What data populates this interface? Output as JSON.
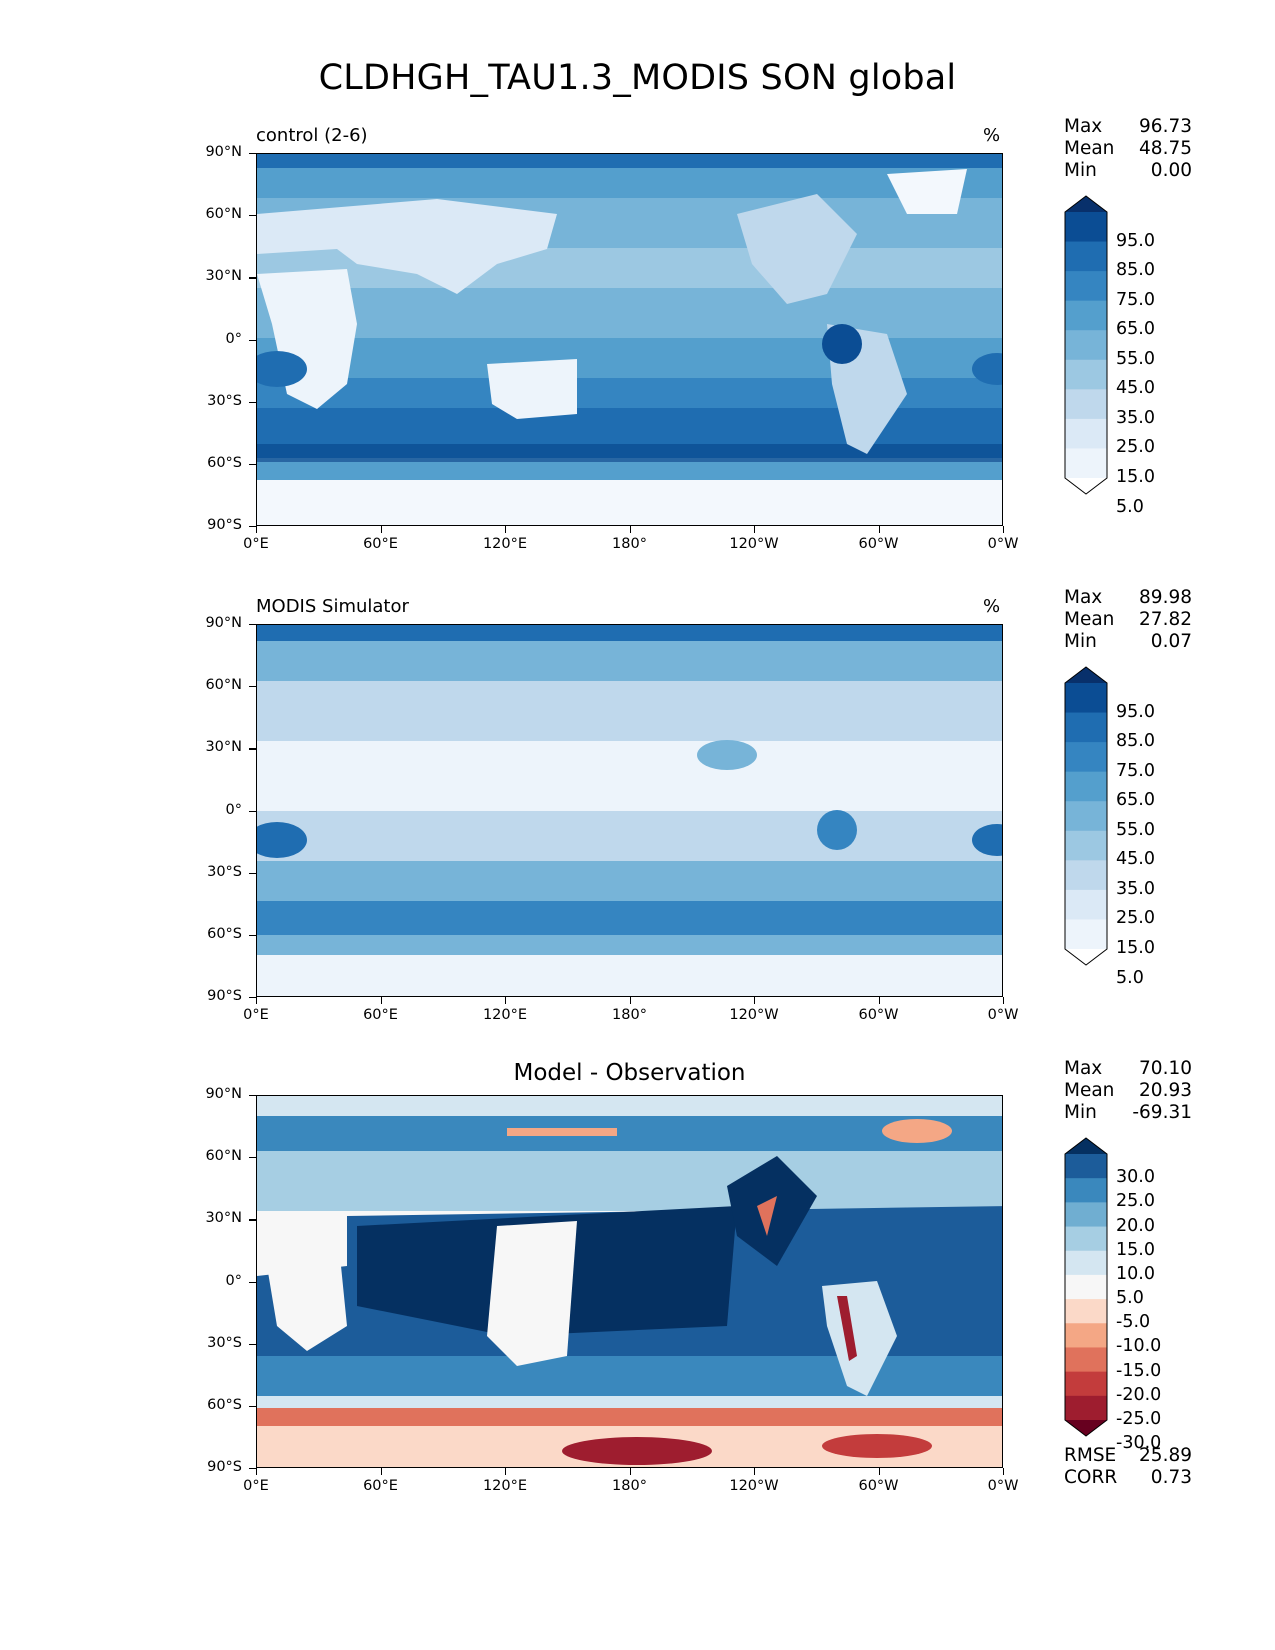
{
  "title": "CLDHGH_TAU1.3_MODIS SON global",
  "lat_ticks": [
    "90°N",
    "60°N",
    "30°N",
    "0°",
    "30°S",
    "60°S",
    "90°S"
  ],
  "lon_ticks": [
    "0°E",
    "60°E",
    "120°E",
    "180°",
    "120°W",
    "60°W",
    "0°W"
  ],
  "panels": [
    {
      "title": "control (2-6)",
      "title_align": "left",
      "units": "%",
      "stats": {
        "max_label": "Max",
        "max": "96.73",
        "mean_label": "Mean",
        "mean": "48.75",
        "min_label": "Min",
        "min": "0.00"
      },
      "colorbar": {
        "labels": [
          "95.0",
          "85.0",
          "75.0",
          "65.0",
          "55.0",
          "45.0",
          "35.0",
          "25.0",
          "15.0",
          "5.0"
        ],
        "colors": [
          "#08306b",
          "#0b4d94",
          "#1f6db1",
          "#3585c1",
          "#549fcd",
          "#77b4d8",
          "#9cc8e2",
          "#bfd8ec",
          "#dbe9f6",
          "#edf4fb",
          "#ffffff"
        ]
      }
    },
    {
      "title": "MODIS Simulator",
      "title_align": "left",
      "units": "%",
      "stats": {
        "max_label": "Max",
        "max": "89.98",
        "mean_label": "Mean",
        "mean": "27.82",
        "min_label": "Min",
        "min": "0.07"
      },
      "colorbar": {
        "labels": [
          "95.0",
          "85.0",
          "75.0",
          "65.0",
          "55.0",
          "45.0",
          "35.0",
          "25.0",
          "15.0",
          "5.0"
        ],
        "colors": [
          "#08306b",
          "#0b4d94",
          "#1f6db1",
          "#3585c1",
          "#549fcd",
          "#77b4d8",
          "#9cc8e2",
          "#bfd8ec",
          "#dbe9f6",
          "#edf4fb",
          "#ffffff"
        ]
      }
    },
    {
      "title": "Model - Observation",
      "title_align": "center",
      "units": "",
      "stats": {
        "max_label": "Max",
        "max": "70.10",
        "mean_label": "Mean",
        "mean": "20.93",
        "min_label": "Min",
        "min": "-69.31"
      },
      "colorbar": {
        "labels": [
          "30.0",
          "25.0",
          "20.0",
          "15.0",
          "10.0",
          "5.0",
          "-5.0",
          "-10.0",
          "-15.0",
          "-20.0",
          "-25.0",
          "-30.0"
        ],
        "colors": [
          "#053061",
          "#1c5c9a",
          "#3a88bd",
          "#70aed1",
          "#a6cee3",
          "#d4e6f1",
          "#f7f7f7",
          "#fbd9c8",
          "#f4a785",
          "#e0725c",
          "#c33c3c",
          "#9e1d2f",
          "#67001f"
        ]
      },
      "metrics": {
        "rmse_label": "RMSE",
        "rmse": "25.89",
        "corr_label": "CORR",
        "corr": "0.73"
      }
    }
  ]
}
